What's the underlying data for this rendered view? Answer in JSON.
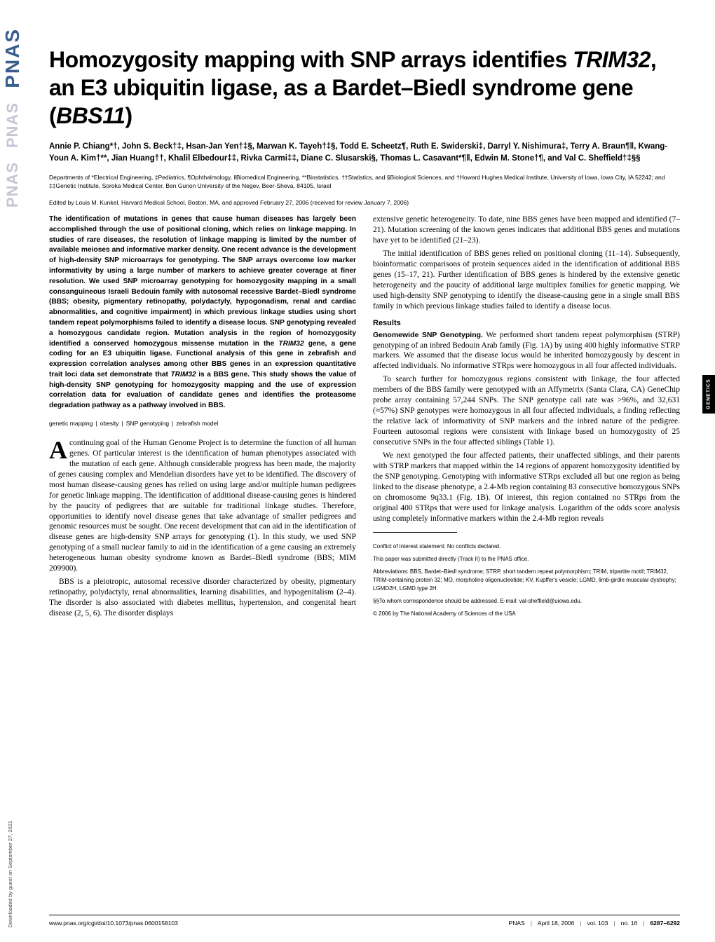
{
  "journal": {
    "sidebar_logo": "PNAS",
    "section_tab": "GENETICS",
    "download_note": "Downloaded by guest on September 27, 2021"
  },
  "title": {
    "line1": "Homozygosity mapping with SNP arrays identifies ",
    "gene1": "TRIM32",
    "line2": ", an E3 ubiquitin ligase, as a Bardet–Biedl syndrome gene (",
    "gene2": "BBS11",
    "line3": ")"
  },
  "authors": "Annie P. Chiang*†, John S. Beck†‡, Hsan-Jan Yen†‡§, Marwan K. Tayeh†‡§, Todd E. Scheetz¶, Ruth E. Swiderski‡, Darryl Y. Nishimura‡, Terry A. Braun¶‖, Kwang-Youn A. Kim†**, Jian Huang††, Khalil Elbedour‡‡, Rivka Carmi‡‡, Diane C. Slusarski§, Thomas L. Casavant*¶‖, Edwin M. Stone†¶, and Val C. Sheffield†‡§§",
  "affiliations": "Departments of *Electrical Engineering, ‡Pediatrics, ¶Ophthalmology, ‖Biomedical Engineering, **Biostatistics, ††Statistics, and §Biological Sciences, and †Howard Hughes Medical Institute, University of Iowa, Iowa City, IA 52242; and ‡‡Genetic Institute, Soroka Medical Center, Ben Gurion University of the Negev, Beer-Sheva, 84105, Israel",
  "edited": "Edited by Louis M. Kunkel, Harvard Medical School, Boston, MA, and approved February 27, 2006 (received for review January 7, 2006)",
  "abstract": {
    "p1": "The identification of mutations in genes that cause human diseases has largely been accomplished through the use of positional cloning, which relies on linkage mapping. In studies of rare diseases, the resolution of linkage mapping is limited by the number of available meioses and informative marker density. One recent advance is the development of high-density SNP microarrays for genotyping. The SNP arrays overcome low marker informativity by using a large number of markers to achieve greater coverage at finer resolution. We used SNP microarray genotyping for homozygosity mapping in a small consanguineous Israeli Bedouin family with autosomal recessive Bardet–Biedl syndrome (BBS; obesity, pigmentary retinopathy, polydactyly, hypogonadism, renal and cardiac abnormalities, and cognitive impairment) in which previous linkage studies using short tandem repeat polymorphisms failed to identify a disease locus. SNP genotyping revealed a homozygous candidate region. Mutation analysis in the region of homozygosity identified a conserved homozygous missense mutation in the ",
    "gene1": "TRIM32",
    "p2": " gene, a gene coding for an E3 ubiquitin ligase. Functional analysis of this gene in zebrafish and expression correlation analyses among other BBS genes in an expression quantitative trait loci data set demonstrate that ",
    "gene2": "TRIM32",
    "p3": " is a BBS gene. This study shows the value of high-density SNP genotyping for homozygosity mapping and the use of expression correlation data for evaluation of candidate genes and identifies the proteasome degradation pathway as a pathway involved in BBS."
  },
  "keywords": {
    "k1": "genetic mapping",
    "k2": "obesity",
    "k3": "SNP genotyping",
    "k4": "zebrafish model"
  },
  "body": {
    "intro_dropcap": "A",
    "intro_p1": "continuing goal of the Human Genome Project is to determine the function of all human genes. Of particular interest is the identification of human phenotypes associated with the mutation of each gene. Although considerable progress has been made, the majority of genes causing complex and Mendelian disorders have yet to be identified. The discovery of most human disease-causing genes has relied on using large and/or multiple human pedigrees for genetic linkage mapping. The identification of additional disease-causing genes is hindered by the paucity of pedigrees that are suitable for traditional linkage studies. Therefore, opportunities to identify novel disease genes that take advantage of smaller pedigrees and genomic resources must be sought. One recent development that can aid in the identification of disease genes are high-density SNP arrays for genotyping (1). In this study, we used SNP genotyping of a small nuclear family to aid in the identification of a gene causing an extremely heterogeneous human obesity syndrome known as Bardet–Biedl syndrome (BBS; MIM 209900).",
    "intro_p2": "BBS is a pleiotropic, autosomal recessive disorder characterized by obesity, pigmentary retinopathy, polydactyly, renal abnormalities, learning disabilities, and hypogenitalism (2–4). The disorder is also associated with diabetes mellitus, hypertension, and congenital heart disease (2, 5, 6). The disorder displays",
    "col2_p1": "extensive genetic heterogeneity. To date, nine BBS genes have been mapped and identified (7–21). Mutation screening of the known genes indicates that additional BBS genes and mutations have yet to be identified (21–23).",
    "col2_p2": "The initial identification of BBS genes relied on positional cloning (11–14). Subsequently, bioinformatic comparisons of protein sequences aided in the identification of additional BBS genes (15–17, 21). Further identification of BBS genes is hindered by the extensive genetic heterogeneity and the paucity of additional large multiplex families for genetic mapping. We used high-density SNP genotyping to identify the disease-causing gene in a single small BBS family in which previous linkage studies failed to identify a disease locus.",
    "results_heading": "Results",
    "results_sub1": "Genomewide SNP Genotyping.",
    "results_p1": " We performed short tandem repeat polymorphism (STRP) genotyping of an inbred Bedouin Arab family (Fig. 1A) by using 400 highly informative STRP markers. We assumed that the disease locus would be inherited homozygously by descent in affected individuals. No informative STRps were homozygous in all four affected individuals.",
    "results_p2": "To search further for homozygous regions consistent with linkage, the four affected members of the BBS family were genotyped with an Affymetrix (Santa Clara, CA) GeneChip probe array containing 57,244 SNPs. The SNP genotype call rate was >96%, and 32,631 (≈57%) SNP genotypes were homozygous in all four affected individuals, a finding reflecting the relative lack of informativity of SNP markers and the inbred nature of the pedigree. Fourteen autosomal regions were consistent with linkage based on homozygosity of 25 consecutive SNPs in the four affected siblings (Table 1).",
    "results_p3": "We next genotyped the four affected patients, their unaffected siblings, and their parents with STRP markers that mapped within the 14 regions of apparent homozygosity identified by the SNP genotyping. Genotyping with informative STRps excluded all but one region as being linked to the disease phenotype, a 2.4-Mb region containing 83 consecutive homozygous SNPs on chromosome 9q33.1 (Fig. 1B). Of interest, this region contained no STRps from the original 400 STRps that were used for linkage analysis. Logarithm of the odds score analysis using completely informative markers within the 2.4-Mb region reveals"
  },
  "footnotes": {
    "conflict": "Conflict of interest statement: No conflicts declared.",
    "track": "This paper was submitted directly (Track II) to the PNAS office.",
    "abbrev": "Abbreviations: BBS, Bardet–Biedl syndrome; STRP, short tandem repeat polymorphism; TRIM, tripartite motif; TRIM32, TRIM-containing protein 32; MO, morpholino oligonucleotide; KV, Kupffer's vesicle; LGMD, limb-girdle muscular dystrophy; LGMD2H, LGMD type 2H.",
    "corresponding": "§§To whom correspondence should be addressed. E-mail: val-sheffield@uiowa.edu.",
    "copyright": "© 2006 by The National Academy of Sciences of the USA"
  },
  "footer": {
    "doi": "www.pnas.org/cgi/doi/10.1073/pnas.0600158103",
    "journal": "PNAS",
    "date": "April 18, 2006",
    "vol": "vol. 103",
    "no": "no. 16",
    "pages": "6287–6292"
  },
  "colors": {
    "logo_blue": "#3a5f8f",
    "logo_faded": "#c5c5d5",
    "text": "#000000",
    "background": "#ffffff"
  },
  "typography": {
    "title_size": 32,
    "authors_size": 11.5,
    "affil_size": 8.5,
    "abstract_size": 10.2,
    "body_size": 11.5,
    "footnote_size": 8,
    "footer_size": 8.5
  }
}
